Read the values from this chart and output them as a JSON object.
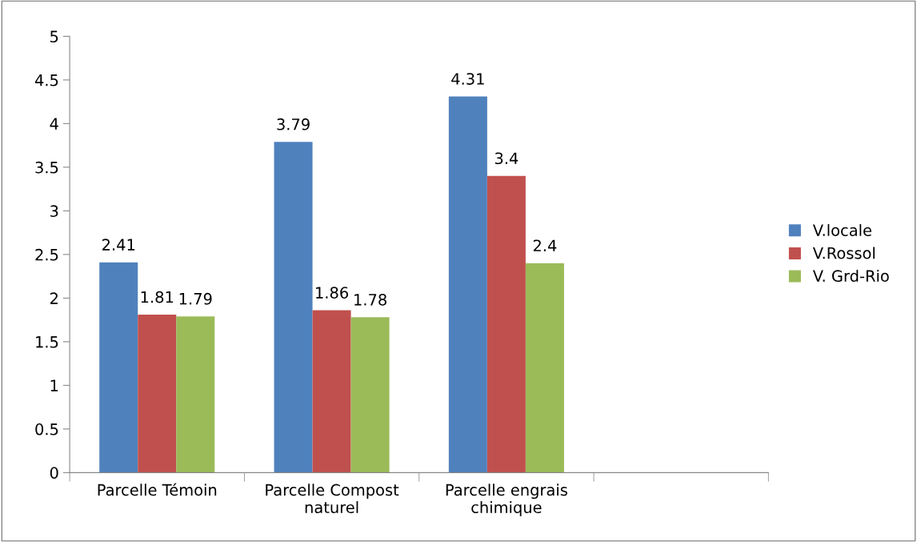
{
  "chart_data": {
    "type": "bar",
    "categories": [
      "Parcelle Témoin",
      "Parcelle Compost\nnaturel",
      "Parcelle engrais\nchimique",
      null
    ],
    "series": [
      {
        "name": "V.locale",
        "color": "#4f81bd",
        "values": [
          2.41,
          3.79,
          4.31,
          null
        ]
      },
      {
        "name": "V.Rossol",
        "color": "#c0504d",
        "values": [
          1.81,
          1.86,
          3.4,
          null
        ]
      },
      {
        "name": "V. Grd-Rio",
        "color": "#9bbb59",
        "values": [
          1.79,
          1.78,
          2.4,
          null
        ]
      }
    ],
    "ylim": [
      0,
      5
    ],
    "yticks": [
      0,
      0.5,
      1,
      1.5,
      2,
      2.5,
      3,
      3.5,
      4,
      4.5,
      5
    ],
    "grid": false,
    "legend": "right",
    "data_labels": true
  }
}
